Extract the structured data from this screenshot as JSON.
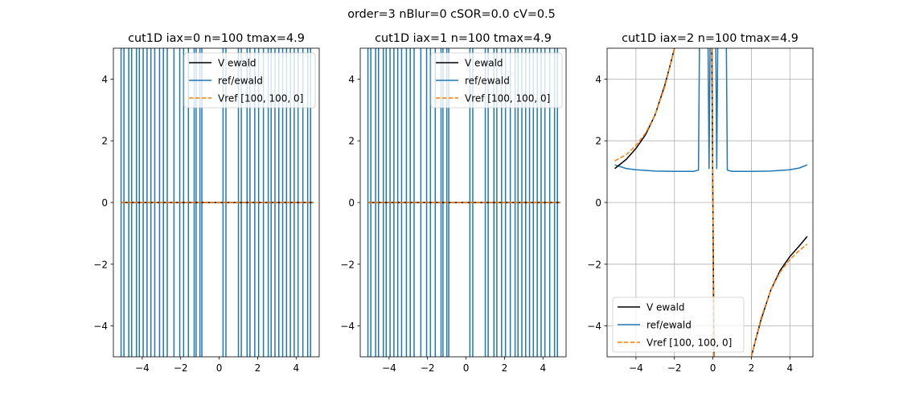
{
  "suptitle": "order=3 nBlur=0 cSOR=0.0 cV=0.5",
  "colors": {
    "v_ewald": "#000000",
    "ratio": "#1f77b4",
    "vref": "#ff7f0e",
    "grid": "#b0b0b0"
  },
  "chart_data": [
    {
      "type": "line",
      "title": "cut1D iax=0 n=100 tmax=4.9",
      "xlim": [
        -5.5,
        5.2
      ],
      "ylim": [
        -5,
        5
      ],
      "xticks": [
        -4,
        -2,
        0,
        2,
        4
      ],
      "yticks": [
        -4,
        -2,
        0,
        2,
        4
      ],
      "grid": false,
      "legend": {
        "placement": "top-right",
        "entries": [
          "V ewald",
          "ref/ewald",
          "Vref [100, 100, 0]"
        ]
      },
      "series": [
        {
          "name": "V ewald",
          "style": "solid",
          "color": "#000000",
          "points": [
            [
              -5.1,
              0
            ],
            [
              4.9,
              0
            ]
          ]
        },
        {
          "name": "ref/ewald",
          "style": "solid",
          "color": "#1f77b4",
          "x_range": [
            -5.1,
            4.9
          ],
          "vertical_spikes_at": [
            -5.1,
            -4.95,
            -4.7,
            -4.55,
            -4.3,
            -4.15,
            -3.95,
            -3.75,
            -3.55,
            -3.35,
            -3.1,
            -2.9,
            -2.7,
            -2.35,
            -2.05,
            -1.85,
            -1.6,
            -1.3,
            -1.2,
            -1.0,
            -0.9,
            0.2,
            0.35,
            1.0,
            1.15,
            1.45,
            1.6,
            1.85,
            2.05,
            2.3,
            2.55,
            2.7,
            2.9,
            3.1,
            3.3,
            3.5,
            3.7,
            3.9,
            4.1,
            4.35,
            4.6,
            4.75
          ]
        },
        {
          "name": "Vref [100, 100, 0]",
          "style": "dashed",
          "color": "#ff7f0e",
          "points": [
            [
              -5.1,
              0
            ],
            [
              4.9,
              0
            ]
          ]
        }
      ]
    },
    {
      "type": "line",
      "title": "cut1D iax=1 n=100 tmax=4.9",
      "xlim": [
        -5.5,
        5.2
      ],
      "ylim": [
        -5,
        5
      ],
      "xticks": [
        -4,
        -2,
        0,
        2,
        4
      ],
      "yticks": [
        -4,
        -2,
        0,
        2,
        4
      ],
      "grid": false,
      "legend": {
        "placement": "top-right",
        "entries": [
          "V ewald",
          "ref/ewald",
          "Vref [100, 100, 0]"
        ]
      },
      "series": [
        {
          "name": "V ewald",
          "style": "solid",
          "color": "#000000",
          "points": [
            [
              -5.1,
              0
            ],
            [
              4.9,
              0
            ]
          ]
        },
        {
          "name": "ref/ewald",
          "style": "solid",
          "color": "#1f77b4",
          "x_range": [
            -5.1,
            4.9
          ],
          "vertical_spikes_at": [
            -5.1,
            -4.95,
            -4.7,
            -4.55,
            -4.3,
            -4.15,
            -3.95,
            -3.75,
            -3.55,
            -3.35,
            -3.1,
            -2.9,
            -2.7,
            -2.35,
            -2.05,
            -1.85,
            -1.6,
            -1.3,
            -1.2,
            -1.0,
            -0.9,
            0.2,
            0.35,
            1.0,
            1.15,
            1.45,
            1.6,
            1.85,
            2.05,
            2.3,
            2.55,
            2.7,
            2.9,
            3.1,
            3.3,
            3.5,
            3.7,
            3.9,
            4.1,
            4.35,
            4.6,
            4.75
          ]
        },
        {
          "name": "Vref [100, 100, 0]",
          "style": "dashed",
          "color": "#ff7f0e",
          "points": [
            [
              -5.1,
              0
            ],
            [
              4.9,
              0
            ]
          ]
        }
      ]
    },
    {
      "type": "line",
      "title": "cut1D iax=2 n=100 tmax=4.9",
      "xlim": [
        -5.5,
        5.2
      ],
      "ylim": [
        -5,
        5
      ],
      "xticks": [
        -4,
        -2,
        0,
        2,
        4
      ],
      "yticks": [
        -4,
        -2,
        0,
        2,
        4
      ],
      "grid": true,
      "legend": {
        "placement": "bottom-left",
        "entries": [
          "V ewald",
          "ref/ewald",
          "Vref [100, 100, 0]"
        ]
      },
      "series": [
        {
          "name": "V ewald",
          "style": "solid",
          "color": "#000000",
          "segments": [
            [
              [
                -5.1,
                1.1
              ],
              [
                -4.5,
                1.4
              ],
              [
                -4.0,
                1.75
              ],
              [
                -3.5,
                2.2
              ],
              [
                -3.0,
                2.85
              ],
              [
                -2.5,
                3.8
              ],
              [
                -2.2,
                4.5
              ],
              [
                -2.0,
                5.0
              ]
            ],
            [
              [
                -0.06,
                5.0
              ],
              [
                0.0,
                0.0
              ],
              [
                0.06,
                -5.0
              ]
            ],
            [
              [
                2.0,
                -5.0
              ],
              [
                2.2,
                -4.5
              ],
              [
                2.5,
                -3.8
              ],
              [
                3.0,
                -2.85
              ],
              [
                3.5,
                -2.2
              ],
              [
                4.0,
                -1.75
              ],
              [
                4.5,
                -1.4
              ],
              [
                4.9,
                -1.1
              ]
            ]
          ]
        },
        {
          "name": "ref/ewald",
          "style": "solid",
          "color": "#1f77b4",
          "segments": [
            [
              [
                -5.1,
                1.22
              ],
              [
                -4.5,
                1.1
              ],
              [
                -4.0,
                1.06
              ],
              [
                -3.0,
                1.02
              ],
              [
                -2.0,
                1.01
              ],
              [
                -1.0,
                1.01
              ],
              [
                -0.75,
                1.05
              ],
              [
                -0.7,
                5.0
              ]
            ],
            [
              [
                -0.25,
                5.0
              ],
              [
                -0.2,
                1.1
              ],
              [
                -0.15,
                5.0
              ]
            ],
            [
              [
                0.15,
                5.0
              ],
              [
                0.2,
                1.1
              ],
              [
                0.25,
                5.0
              ]
            ],
            [
              [
                0.7,
                5.0
              ],
              [
                0.75,
                1.05
              ],
              [
                1.0,
                1.01
              ],
              [
                2.0,
                1.01
              ],
              [
                3.0,
                1.02
              ],
              [
                4.0,
                1.06
              ],
              [
                4.5,
                1.12
              ],
              [
                4.9,
                1.22
              ]
            ]
          ]
        },
        {
          "name": "Vref [100, 100, 0]",
          "style": "dashed",
          "color": "#ff7f0e",
          "segments": [
            [
              [
                -5.1,
                1.35
              ],
              [
                -4.5,
                1.55
              ],
              [
                -4.0,
                1.85
              ],
              [
                -3.5,
                2.25
              ],
              [
                -3.0,
                2.85
              ],
              [
                -2.5,
                3.75
              ],
              [
                -2.2,
                4.5
              ],
              [
                -2.0,
                5.0
              ]
            ],
            [
              [
                -0.05,
                5.0
              ],
              [
                0.0,
                0.0
              ],
              [
                0.05,
                -5.0
              ]
            ],
            [
              [
                2.0,
                -5.0
              ],
              [
                2.2,
                -4.5
              ],
              [
                2.5,
                -3.75
              ],
              [
                3.0,
                -2.85
              ],
              [
                3.5,
                -2.25
              ],
              [
                4.0,
                -1.85
              ],
              [
                4.5,
                -1.55
              ],
              [
                4.9,
                -1.35
              ]
            ]
          ]
        }
      ]
    }
  ]
}
